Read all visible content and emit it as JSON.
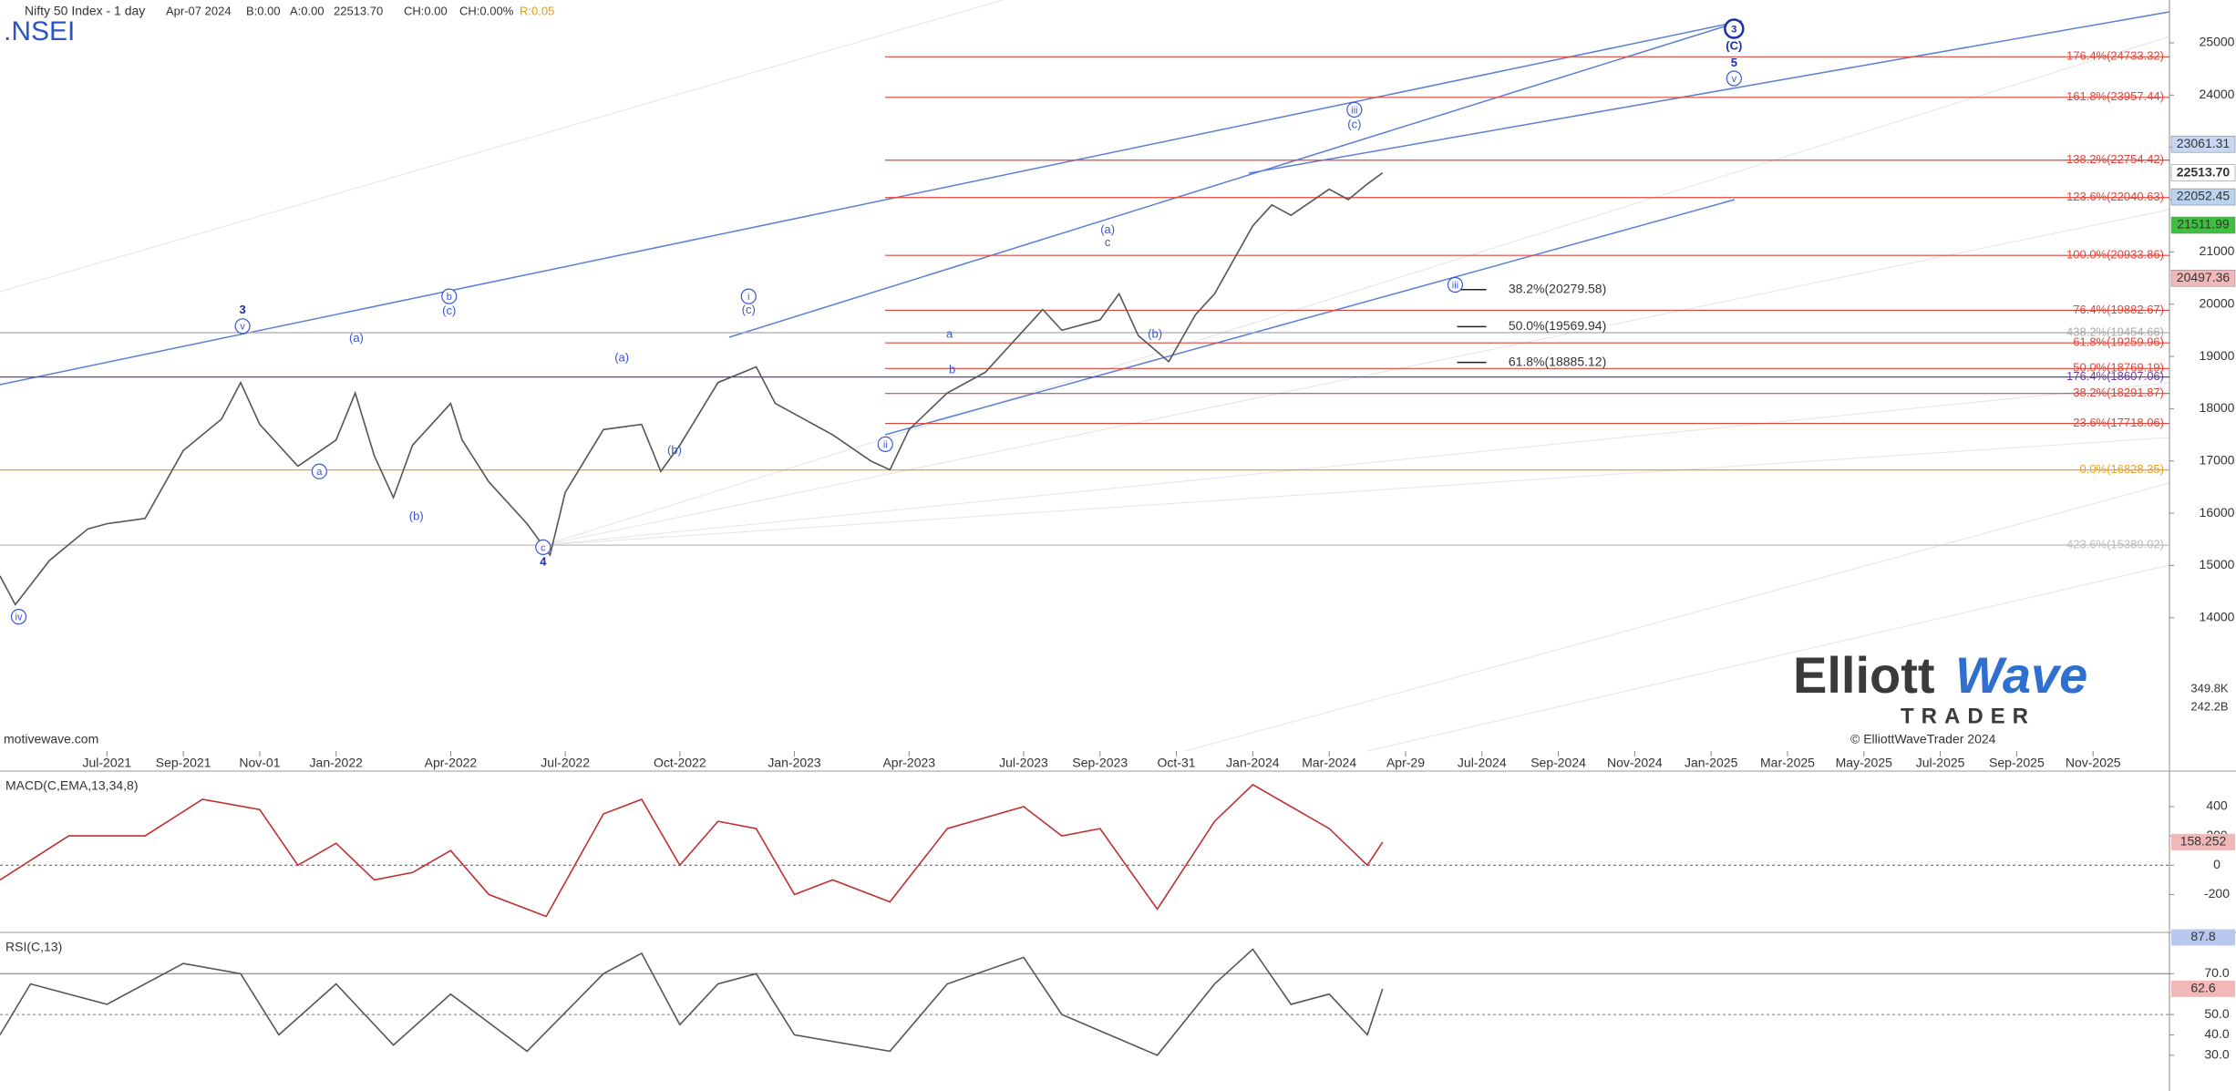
{
  "header": {
    "symbol_title": "Nifty 50 Index - 1 day",
    "date": "Apr-07 2024",
    "bid": "B:0.00",
    "ask": "A:0.00",
    "close": "22513.70",
    "change": "CH:0.00",
    "change_pct": "CH:0.00%",
    "range": "R:0.05",
    "ticker": ".NSEI"
  },
  "watermark": "motivewave.com",
  "logo": {
    "word1": "Elliott",
    "word2": "Wave",
    "word3": "TRADER",
    "copyright": "© ElliottWaveTrader 2024"
  },
  "volume_labels": [
    "349.8K",
    "242.2B"
  ],
  "chart_data": [
    {
      "type": "line",
      "x": [
        -2.8,
        -2.4,
        -1.5,
        -0.5,
        0,
        1,
        2,
        3,
        3.5,
        4,
        5,
        6,
        6.5,
        7,
        7.5,
        8,
        9,
        9.3,
        10,
        11,
        11.6,
        12,
        13,
        14,
        14.5,
        15,
        16,
        17,
        17.5,
        18,
        19,
        20,
        20.5,
        21,
        22,
        23,
        24,
        24.5,
        25,
        26,
        26.5,
        27,
        27.8,
        28.5,
        29,
        30,
        30.5,
        31,
        32,
        32.5,
        33,
        33.4
      ],
      "series": [
        {
          "color": "#555555",
          "values": [
            14800,
            14250,
            15100,
            15700,
            15800,
            15900,
            17200,
            17800,
            18500,
            17700,
            16900,
            17400,
            18300,
            17100,
            16300,
            17300,
            18100,
            17400,
            16600,
            15800,
            15200,
            16400,
            17600,
            17700,
            16800,
            17300,
            18500,
            18800,
            18100,
            17900,
            17500,
            17000,
            16830,
            17600,
            18300,
            18700,
            19500,
            19900,
            19500,
            19700,
            20200,
            19400,
            18900,
            19800,
            20200,
            21500,
            21900,
            21700,
            22200,
            22000,
            22300,
            22513.7
          ]
        }
      ],
      "xlim": [
        -2.8,
        54
      ],
      "ylim": [
        11450,
        25820
      ],
      "yticks": [
        25000,
        24000,
        23000,
        22000,
        21000,
        20000,
        19000,
        18000,
        17000,
        16000,
        15000,
        14000
      ],
      "xticks": [
        {
          "value": 0,
          "label": "Jul-2021"
        },
        {
          "value": 2,
          "label": "Sep-2021"
        },
        {
          "value": 4,
          "label": "Nov-01"
        },
        {
          "value": 6,
          "label": "Jan-2022"
        },
        {
          "value": 9,
          "label": "Apr-2022"
        },
        {
          "value": 12,
          "label": "Jul-2022"
        },
        {
          "value": 15,
          "label": "Oct-2022"
        },
        {
          "value": 18,
          "label": "Jan-2023"
        },
        {
          "value": 21,
          "label": "Apr-2023"
        },
        {
          "value": 24,
          "label": "Jul-2023"
        },
        {
          "value": 26,
          "label": "Sep-2023"
        },
        {
          "value": 28,
          "label": "Oct-31"
        },
        {
          "value": 30,
          "label": "Jan-2024"
        },
        {
          "value": 32,
          "label": "Mar-2024"
        },
        {
          "value": 34,
          "label": "Apr-29"
        },
        {
          "value": 36,
          "label": "Jul-2024"
        },
        {
          "value": 38,
          "label": "Sep-2024"
        },
        {
          "value": 40,
          "label": "Nov-2024"
        },
        {
          "value": 42,
          "label": "Jan-2025"
        },
        {
          "value": 44,
          "label": "Mar-2025"
        },
        {
          "value": 46,
          "label": "May-2025"
        },
        {
          "value": 48,
          "label": "Jul-2025"
        },
        {
          "value": 50,
          "label": "Sep-2025"
        },
        {
          "value": 52,
          "label": "Nov-2025"
        }
      ],
      "fib_levels": [
        {
          "label": "176.4%(24733.32)",
          "value": 24733.32,
          "color": "#e0453a",
          "extend": false
        },
        {
          "label": "161.8%(23957.44)",
          "value": 23957.44,
          "color": "#e0453a",
          "extend": false
        },
        {
          "label": "138.2%(22754.42)",
          "value": 22754.42,
          "color": "#e0453a",
          "extend": false
        },
        {
          "label": "123.6%(22040.63)",
          "value": 22040.63,
          "color": "#e0453a",
          "extend": false
        },
        {
          "label": "100.0%(20933.86)",
          "value": 20933.86,
          "color": "#e0453a",
          "extend": false
        },
        {
          "label": "76.4%(19882.67)",
          "value": 19882.67,
          "color": "#e0453a",
          "extend": false
        },
        {
          "label": "438.2%(19454.66)",
          "value": 19454.66,
          "color": "#aaaaaa",
          "extend": true
        },
        {
          "label": "61.8%(19259.96)",
          "value": 19259.96,
          "color": "#e0453a",
          "extend": false
        },
        {
          "label": "50.0%(18769.19)",
          "value": 18769.19,
          "color": "#e0453a",
          "extend": false
        },
        {
          "label": "176.4%(18607.06)",
          "value": 18607.06,
          "color": "#6a3fa0",
          "extend": true
        },
        {
          "label": "38.2%(18291.87)",
          "value": 18291.87,
          "color": "#e0453a",
          "extend": false
        },
        {
          "label": "23.6%(17718.06)",
          "value": 17718.06,
          "color": "#e0453a",
          "extend": false
        },
        {
          "label": "0.0%(16828.35)",
          "value": 16828.35,
          "color": "#f0a020",
          "extend": true
        },
        {
          "label": "423.6%(15389.02)",
          "value": 15389.02,
          "color": "#bbbbbb",
          "extend": true
        }
      ],
      "targets": [
        {
          "label": "38.2%(20279.58)",
          "value": 20279.58,
          "x": 35.35
        },
        {
          "label": "50.0%(19569.94)",
          "value": 19569.94,
          "x": 35.35
        },
        {
          "label": "61.8%(18885.12)",
          "value": 18885.12,
          "x": 35.35
        }
      ],
      "wave_labels": [
        {
          "text": "iv",
          "x": -2.31,
          "y": 14020,
          "circled": true,
          "bold": false
        },
        {
          "text": "3",
          "x": 3.55,
          "y": 19900,
          "circled": false,
          "bold": true
        },
        {
          "text": "v",
          "x": 3.55,
          "y": 19580,
          "circled": true,
          "bold": false
        },
        {
          "text": "a",
          "x": 5.56,
          "y": 16800,
          "circled": true,
          "bold": false
        },
        {
          "text": "(a)",
          "x": 6.53,
          "y": 19360,
          "circled": false,
          "bold": false
        },
        {
          "text": "b",
          "x": 8.96,
          "y": 20150,
          "circled": true,
          "bold": false
        },
        {
          "text": "(c)",
          "x": 8.96,
          "y": 19880,
          "circled": false,
          "bold": false
        },
        {
          "text": "(b)",
          "x": 8.1,
          "y": 15950,
          "circled": false,
          "bold": false
        },
        {
          "text": "c",
          "x": 11.42,
          "y": 15350,
          "circled": true,
          "bold": false
        },
        {
          "text": "4",
          "x": 11.42,
          "y": 15080,
          "circled": false,
          "bold": true
        },
        {
          "text": "(a)",
          "x": 13.48,
          "y": 18980,
          "circled": false,
          "bold": false
        },
        {
          "text": "(b)",
          "x": 14.86,
          "y": 17210,
          "circled": false,
          "bold": false
        },
        {
          "text": "i",
          "x": 16.8,
          "y": 20150,
          "circled": true,
          "bold": false
        },
        {
          "text": "(c)",
          "x": 16.8,
          "y": 19900,
          "circled": false,
          "bold": false
        },
        {
          "text": "ii",
          "x": 20.38,
          "y": 17320,
          "circled": true,
          "bold": false
        },
        {
          "text": "a",
          "x": 22.06,
          "y": 19440,
          "circled": false,
          "bold": false
        },
        {
          "text": "b",
          "x": 22.13,
          "y": 18760,
          "circled": false,
          "bold": false
        },
        {
          "text": "(a)",
          "x": 26.2,
          "y": 21430,
          "circled": false,
          "bold": false
        },
        {
          "text": "c",
          "x": 26.2,
          "y": 21190,
          "circled": false,
          "bold": false
        },
        {
          "text": "(b)",
          "x": 27.44,
          "y": 19440,
          "circled": false,
          "bold": false
        },
        {
          "text": "iii",
          "x": 32.66,
          "y": 23720,
          "circled": true,
          "bold": false
        },
        {
          "text": "(c)",
          "x": 32.66,
          "y": 23450,
          "circled": false,
          "bold": false
        },
        {
          "text": "iii",
          "x": 35.3,
          "y": 20370,
          "circled": true,
          "bold": false
        },
        {
          "text": "3",
          "x": 42.6,
          "y": 25270,
          "circled": true,
          "bold": true
        },
        {
          "text": "(C)",
          "x": 42.6,
          "y": 24950,
          "circled": false,
          "bold": true
        },
        {
          "text": "5",
          "x": 42.6,
          "y": 24620,
          "circled": false,
          "bold": true
        },
        {
          "text": "v",
          "x": 42.6,
          "y": 24320,
          "circled": true,
          "bold": false
        }
      ],
      "price_badges": [
        {
          "value": 23061.31,
          "label": "23061.31",
          "color": "#c9d6f2"
        },
        {
          "value": 22513.7,
          "label": "22513.70",
          "color": "#ffffff"
        },
        {
          "value": 22052.45,
          "label": "22052.45",
          "color": "#b9d3f0"
        },
        {
          "value": 21511.99,
          "label": "21511.99",
          "color": "#3fbf3f"
        },
        {
          "value": 20497.36,
          "label": "20497.36",
          "color": "#f2b8b8"
        }
      ]
    },
    {
      "type": "line",
      "title": "MACD(C,EMA,13,34,8)",
      "x": [
        -2.8,
        -1,
        1,
        2.5,
        4,
        5,
        6,
        7,
        8,
        9,
        10,
        11.5,
        13,
        14,
        15,
        16,
        17,
        18,
        19,
        20.5,
        22,
        24,
        25,
        26,
        27.5,
        29,
        30,
        31,
        32,
        33,
        33.4
      ],
      "series": [
        {
          "color": "#c03030",
          "values": [
            -100,
            200,
            200,
            450,
            380,
            0,
            150,
            -100,
            -50,
            100,
            -200,
            -350,
            350,
            450,
            0,
            300,
            250,
            -200,
            -100,
            -250,
            250,
            400,
            200,
            250,
            -300,
            300,
            550,
            400,
            250,
            0,
            158.252
          ]
        }
      ],
      "ylim": [
        -440,
        624
      ],
      "yticks": [
        400,
        200,
        0,
        -200
      ],
      "badges": [
        158.252
      ]
    },
    {
      "type": "line",
      "title": "RSI(C,13)",
      "x": [
        -2.8,
        -2,
        0,
        2,
        3.5,
        4.5,
        6,
        7.5,
        9,
        11,
        13,
        14,
        15,
        16,
        17,
        18,
        20.5,
        22,
        24,
        25,
        27.5,
        29,
        30,
        31,
        32,
        33,
        33.4
      ],
      "series": [
        {
          "color": "#555555",
          "values": [
            40,
            65,
            55,
            75,
            70,
            40,
            65,
            35,
            60,
            32,
            70,
            80,
            45,
            65,
            70,
            40,
            32,
            65,
            78,
            50,
            30,
            65,
            82,
            55,
            60,
            40,
            62.6
          ]
        }
      ],
      "ylim": [
        12.5,
        88.9
      ],
      "yticks": [
        {
          "value": 70,
          "label": "70.0"
        },
        {
          "value": 50,
          "label": "50.0"
        },
        {
          "value": 40,
          "label": "40.0"
        },
        {
          "value": 30,
          "label": "30.0"
        }
      ],
      "hlines": [
        {
          "value": 70,
          "style": "solid"
        },
        {
          "value": 50,
          "style": "dashed"
        }
      ],
      "badges": [
        87.8,
        62.6
      ]
    }
  ]
}
